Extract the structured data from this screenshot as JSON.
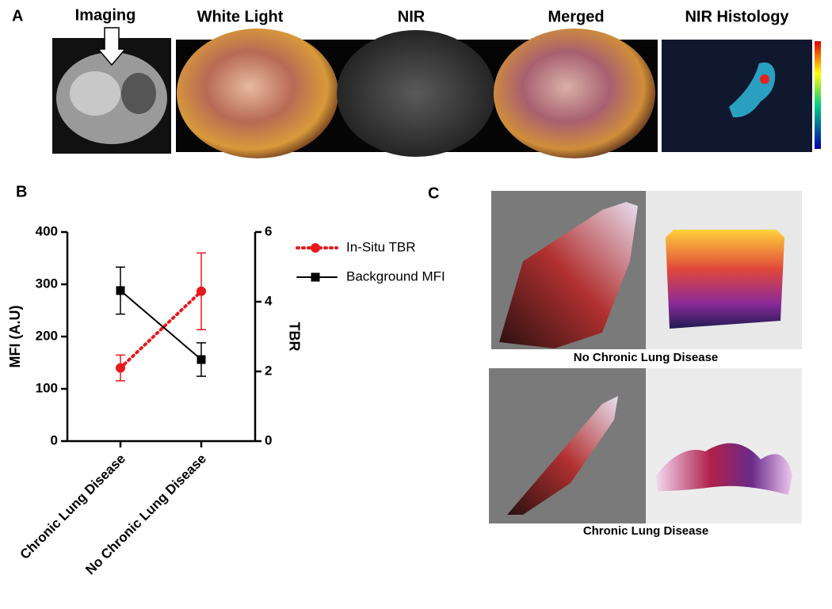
{
  "panel_a": {
    "label": "A",
    "titles": [
      "Imaging",
      "White Light",
      "NIR",
      "Merged",
      "NIR Histology"
    ]
  },
  "chart_data": {
    "type": "line",
    "panel_label": "B",
    "categories": [
      "Chronic Lung Disease",
      "No Chronic Lung Disease"
    ],
    "ylabel": "MFI (A.U)",
    "y2label": "TBR",
    "ylim": [
      0,
      400
    ],
    "yticks": [
      0,
      100,
      200,
      300,
      400
    ],
    "y2lim": [
      0,
      6
    ],
    "y2ticks": [
      0,
      2,
      4,
      6
    ],
    "series": [
      {
        "name": "In-Situ TBR",
        "color": "#e8191c",
        "axis": "y2",
        "dash": "dotted",
        "marker": "circle",
        "values": [
          2.1,
          4.3
        ],
        "errors": [
          0.37,
          1.1
        ]
      },
      {
        "name": "Background MFI",
        "color": "#000000",
        "dash": "solid",
        "marker": "square",
        "values": [
          288,
          156
        ],
        "errors": [
          45,
          32
        ]
      }
    ]
  },
  "panel_c": {
    "label": "C",
    "captions": [
      "No Chronic Lung Disease",
      "Chronic Lung Disease"
    ]
  }
}
